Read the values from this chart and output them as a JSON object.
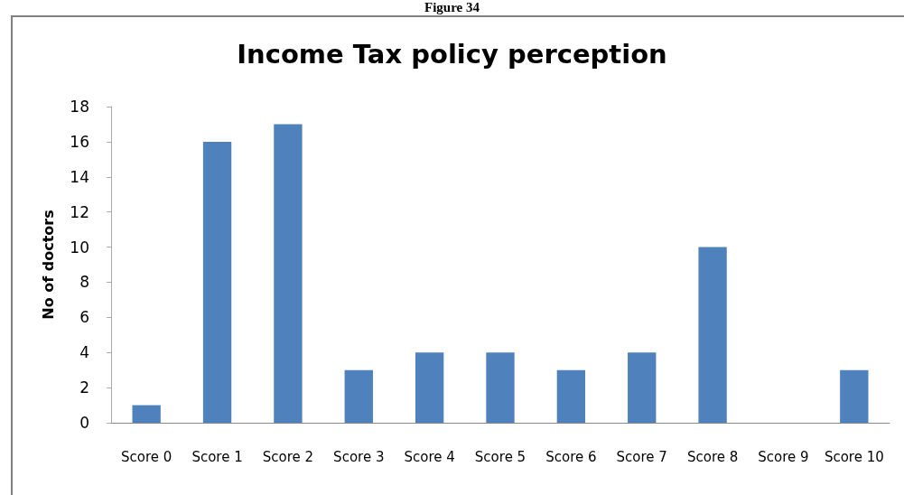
{
  "chart_data": {
    "type": "bar",
    "title": "Income Tax policy perception",
    "ylabel": "No of doctors",
    "annotations": [
      "Figure 34"
    ],
    "categories": [
      "Score 0",
      "Score 1",
      "Score 2",
      "Score 3",
      "Score 4",
      "Score 5",
      "Score 6",
      "Score 7",
      "Score 8",
      "Score 9",
      "Score 10"
    ],
    "values": [
      1,
      16,
      17,
      3,
      4,
      4,
      3,
      4,
      10,
      0,
      3
    ],
    "color": "#4f81bd",
    "ylim": [
      0,
      18
    ],
    "yticks": [
      0,
      2,
      4,
      6,
      8,
      10,
      12,
      14,
      16,
      18
    ],
    "grid": false
  }
}
